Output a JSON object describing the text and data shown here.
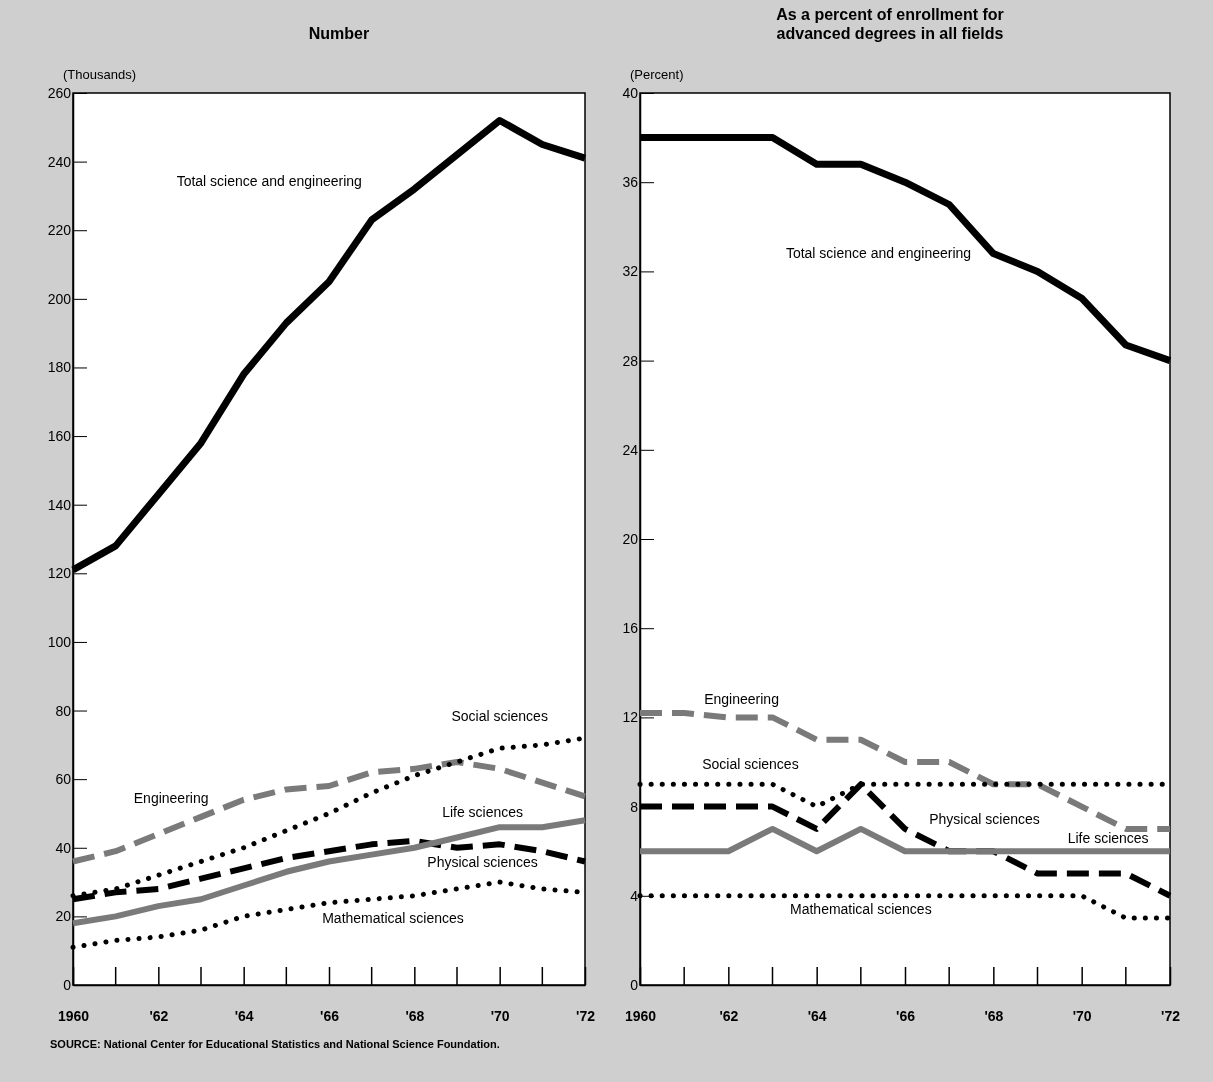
{
  "chart_data": [
    {
      "type": "line",
      "title": "Number",
      "ylabel": "(Thousands)",
      "x": [
        1960,
        1961,
        1962,
        1963,
        1964,
        1965,
        1966,
        1967,
        1968,
        1969,
        1970,
        1971,
        1972
      ],
      "xlim": [
        1960,
        1972
      ],
      "xticks": [
        {
          "value": 1960,
          "label": "1960"
        },
        {
          "value": 1962,
          "label": "'62"
        },
        {
          "value": 1964,
          "label": "'64"
        },
        {
          "value": 1966,
          "label": "'66"
        },
        {
          "value": 1968,
          "label": "'68"
        },
        {
          "value": 1970,
          "label": "'70"
        },
        {
          "value": 1972,
          "label": "'72"
        }
      ],
      "ylim": [
        0,
        260
      ],
      "yticks": [
        0,
        20,
        40,
        60,
        80,
        100,
        120,
        140,
        160,
        180,
        200,
        220,
        240,
        260
      ],
      "grid": false,
      "legend": false,
      "marker": "none",
      "series": [
        {
          "name": "Total science and engineering",
          "color": "#000000",
          "line_style": "solid",
          "values": [
            121,
            128,
            143,
            158,
            178,
            193,
            205,
            223,
            232,
            242,
            252,
            245,
            241
          ]
        },
        {
          "name": "Engineering",
          "color": "#7a7a7a",
          "line_style": "dashed",
          "values": [
            36,
            39,
            44,
            49,
            54,
            57,
            58,
            62,
            63,
            65,
            63,
            59,
            55
          ]
        },
        {
          "name": "Social sciences",
          "color": "#000000",
          "line_style": "dotted",
          "values": [
            26,
            28,
            32,
            36,
            40,
            45,
            50,
            56,
            61,
            65,
            69,
            70,
            72
          ]
        },
        {
          "name": "Physical sciences",
          "color": "#000000",
          "line_style": "dashed",
          "values": [
            25,
            27,
            28,
            31,
            34,
            37,
            39,
            41,
            42,
            40,
            41,
            39,
            36
          ]
        },
        {
          "name": "Life sciences",
          "color": "#7a7a7a",
          "line_style": "solid",
          "values": [
            18,
            20,
            23,
            25,
            29,
            33,
            36,
            38,
            40,
            43,
            46,
            46,
            48
          ]
        },
        {
          "name": "Mathematical sciences",
          "color": "#000000",
          "line_style": "dotted",
          "values": [
            11,
            13,
            14,
            16,
            20,
            22,
            24,
            25,
            26,
            28,
            30,
            28,
            27
          ]
        }
      ],
      "annotations": [
        "SOURCE: National Center for Educational Statistics and National Science Foundation."
      ]
    },
    {
      "type": "line",
      "title": "As a percent of enrollment for advanced degrees in all fields",
      "ylabel": "(Percent)",
      "x": [
        1960,
        1961,
        1962,
        1963,
        1964,
        1965,
        1966,
        1967,
        1968,
        1969,
        1970,
        1971,
        1972
      ],
      "xlim": [
        1960,
        1972
      ],
      "xticks": [
        {
          "value": 1960,
          "label": "1960"
        },
        {
          "value": 1962,
          "label": "'62"
        },
        {
          "value": 1964,
          "label": "'64"
        },
        {
          "value": 1966,
          "label": "'66"
        },
        {
          "value": 1968,
          "label": "'68"
        },
        {
          "value": 1970,
          "label": "'70"
        },
        {
          "value": 1972,
          "label": "'72"
        }
      ],
      "ylim": [
        0,
        40
      ],
      "yticks": [
        0,
        4,
        8,
        12,
        16,
        20,
        24,
        28,
        32,
        36,
        40
      ],
      "grid": false,
      "legend": false,
      "marker": "none",
      "series": [
        {
          "name": "Total science and engineering",
          "color": "#000000",
          "line_style": "solid",
          "values": [
            38,
            38,
            38,
            38,
            36.8,
            36.8,
            36,
            35,
            32.8,
            32,
            30.8,
            28.7,
            28
          ]
        },
        {
          "name": "Engineering",
          "color": "#7a7a7a",
          "line_style": "dashed",
          "values": [
            12.2,
            12.2,
            12,
            12,
            11,
            11,
            10,
            10,
            9,
            9,
            8,
            7,
            7
          ]
        },
        {
          "name": "Social sciences",
          "color": "#000000",
          "line_style": "dotted",
          "values": [
            9,
            9,
            9,
            9,
            8,
            9,
            9,
            9,
            9,
            9,
            9,
            9,
            9
          ]
        },
        {
          "name": "Physical sciences",
          "color": "#000000",
          "line_style": "dashed",
          "values": [
            8,
            8,
            8,
            8,
            7,
            9,
            7,
            6,
            6,
            5,
            5,
            5,
            4
          ]
        },
        {
          "name": "Life sciences",
          "color": "#7a7a7a",
          "line_style": "solid",
          "values": [
            6,
            6,
            6,
            7,
            6,
            7,
            6,
            6,
            6,
            6,
            6,
            6,
            6
          ]
        },
        {
          "name": "Mathematical sciences",
          "color": "#000000",
          "line_style": "dotted",
          "values": [
            4,
            4,
            4,
            4,
            4,
            4,
            4,
            4,
            4,
            4,
            4,
            3,
            3
          ]
        }
      ]
    }
  ]
}
